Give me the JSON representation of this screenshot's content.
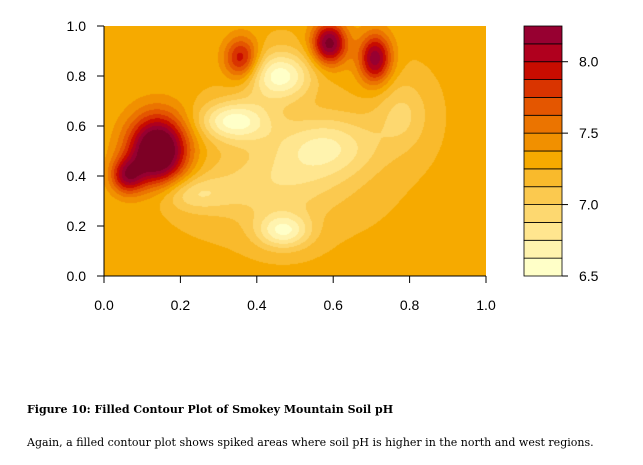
{
  "chart_data": {
    "type": "heatmap",
    "subtype": "filled-contour",
    "xlim": [
      0.0,
      1.0
    ],
    "ylim": [
      0.0,
      1.0
    ],
    "x_ticks": [
      "0.0",
      "0.2",
      "0.4",
      "0.6",
      "0.8",
      "1.0"
    ],
    "y_ticks": [
      "0.0",
      "0.2",
      "0.4",
      "0.6",
      "0.8",
      "1.0"
    ],
    "key_range": [
      6.5,
      8.25
    ],
    "key_ticks": [
      "6.5",
      "7.0",
      "7.5",
      "8.0"
    ],
    "key_levels": [
      6.5,
      6.625,
      6.75,
      6.875,
      7.0,
      7.125,
      7.25,
      7.375,
      7.5,
      7.625,
      7.75,
      7.875,
      8.0,
      8.125,
      8.25
    ],
    "palette": [
      "#FFFFC8",
      "#FFF3AE",
      "#FFE68F",
      "#FDD870",
      "#FBC94F",
      "#F9BA2C",
      "#F6AA00",
      "#F19000",
      "#EB7400",
      "#E45600",
      "#D93400",
      "#C80C00",
      "#B0001E",
      "#970031",
      "#7D0025"
    ],
    "background_level": 7.22,
    "features": [
      {
        "x": 0.14,
        "y": 0.5,
        "peak": 8.55,
        "sx": 0.055,
        "sy": 0.1
      },
      {
        "x": 0.06,
        "y": 0.4,
        "peak": 7.9,
        "sx": 0.03,
        "sy": 0.05
      },
      {
        "x": 0.36,
        "y": 0.87,
        "peak": 7.9,
        "sx": 0.032,
        "sy": 0.06
      },
      {
        "x": 0.59,
        "y": 0.93,
        "peak": 8.2,
        "sx": 0.032,
        "sy": 0.06
      },
      {
        "x": 0.71,
        "y": 0.87,
        "peak": 8.1,
        "sx": 0.03,
        "sy": 0.07
      },
      {
        "x": 0.46,
        "y": 0.8,
        "peak": 6.55,
        "sx": 0.06,
        "sy": 0.07
      },
      {
        "x": 0.36,
        "y": 0.62,
        "peak": 6.7,
        "sx": 0.06,
        "sy": 0.06
      },
      {
        "x": 0.47,
        "y": 0.18,
        "peak": 6.65,
        "sx": 0.05,
        "sy": 0.05
      },
      {
        "x": 0.58,
        "y": 0.52,
        "peak": 6.75,
        "sx": 0.1,
        "sy": 0.09
      },
      {
        "x": 0.22,
        "y": 0.33,
        "peak": 6.9,
        "sx": 0.07,
        "sy": 0.05
      },
      {
        "x": 0.44,
        "y": 0.36,
        "peak": 6.9,
        "sx": 0.14,
        "sy": 0.11
      },
      {
        "x": 0.78,
        "y": 0.65,
        "peak": 6.95,
        "sx": 0.05,
        "sy": 0.1
      },
      {
        "x": 0.3,
        "y": 0.62,
        "peak": 7.0,
        "sx": 0.05,
        "sy": 0.05
      }
    ]
  },
  "caption": {
    "title": "Figure 10: Filled Contour Plot of Smokey Mountain Soil pH",
    "text": "Again, a filled contour plot shows spiked areas where soil pH is higher in the north and west regions."
  }
}
